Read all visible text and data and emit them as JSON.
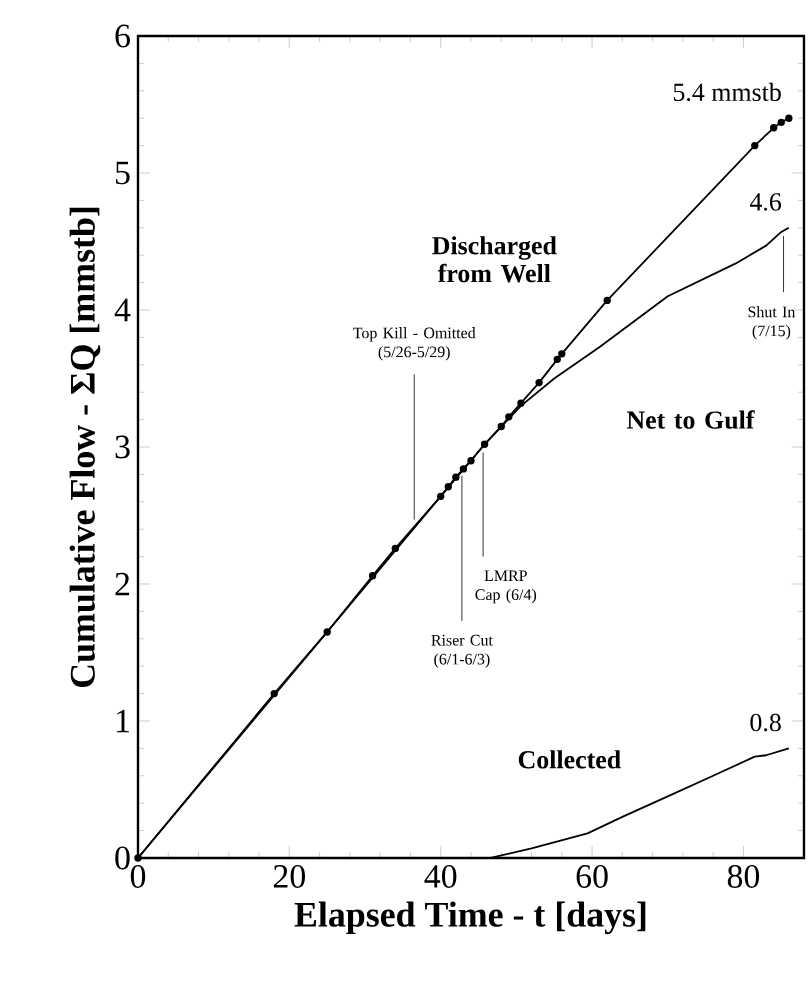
{
  "chart_data": {
    "type": "line",
    "xlabel": "Elapsed Time - t [days]",
    "ylabel": "Cumulative Flow - ΣQ [mmstb]",
    "xlim": [
      0,
      88
    ],
    "xticks": [
      0,
      20,
      40,
      60,
      80
    ],
    "ylim": [
      0,
      6
    ],
    "yticks": [
      0,
      1,
      2,
      3,
      4,
      5,
      6
    ],
    "grid": false,
    "legend": false,
    "series": [
      {
        "name": "Discharged from Well",
        "color": "#000000",
        "marker": "circle",
        "x": [
          0,
          18,
          25,
          31,
          34,
          40,
          41,
          42,
          43,
          44,
          45.8,
          48,
          49,
          50.6,
          53,
          55.4,
          56,
          62,
          81.5,
          84,
          85,
          86
        ],
        "values": [
          0,
          1.2,
          1.65,
          2.06,
          2.26,
          2.64,
          2.71,
          2.78,
          2.84,
          2.9,
          3.02,
          3.15,
          3.22,
          3.32,
          3.47,
          3.64,
          3.68,
          4.07,
          5.2,
          5.33,
          5.37,
          5.4
        ],
        "value_labels": [
          null,
          null,
          null,
          null,
          null,
          null,
          null,
          null,
          null,
          null,
          null,
          null,
          null,
          null,
          null,
          null,
          null,
          null,
          null,
          null,
          null,
          "5.4 mmstb"
        ]
      },
      {
        "name": "Net to Gulf",
        "color": "#000000",
        "marker": "none",
        "x": [
          0,
          40,
          45.8,
          50.6,
          55,
          61,
          70,
          79,
          83,
          85,
          86
        ],
        "values": [
          0,
          2.64,
          3.02,
          3.3,
          3.5,
          3.73,
          4.1,
          4.34,
          4.47,
          4.57,
          4.6
        ],
        "value_labels": [
          null,
          null,
          null,
          null,
          null,
          null,
          null,
          null,
          null,
          null,
          "4.6"
        ]
      },
      {
        "name": "Collected",
        "color": "#000000",
        "marker": "none",
        "x": [
          46.6,
          52,
          59.4,
          64,
          70,
          76,
          81.5,
          83,
          86
        ],
        "values": [
          0,
          0.07,
          0.18,
          0.3,
          0.45,
          0.6,
          0.74,
          0.75,
          0.8
        ],
        "value_labels": [
          null,
          null,
          null,
          null,
          null,
          null,
          null,
          null,
          "0.8"
        ]
      }
    ],
    "annotations": [
      {
        "text": "Top Kill - Omitted (5/26-5/29)",
        "x": 36.5,
        "y": 2.43
      },
      {
        "text": "Riser Cut (6/1-6/3)",
        "x": 42.8,
        "y": 2.83
      },
      {
        "text": "LMRP Cap (6/4)",
        "x": 45.6,
        "y": 3.0
      },
      {
        "text": "Shut In (7/15)",
        "x": 85.3,
        "y": 4.58
      }
    ]
  }
}
